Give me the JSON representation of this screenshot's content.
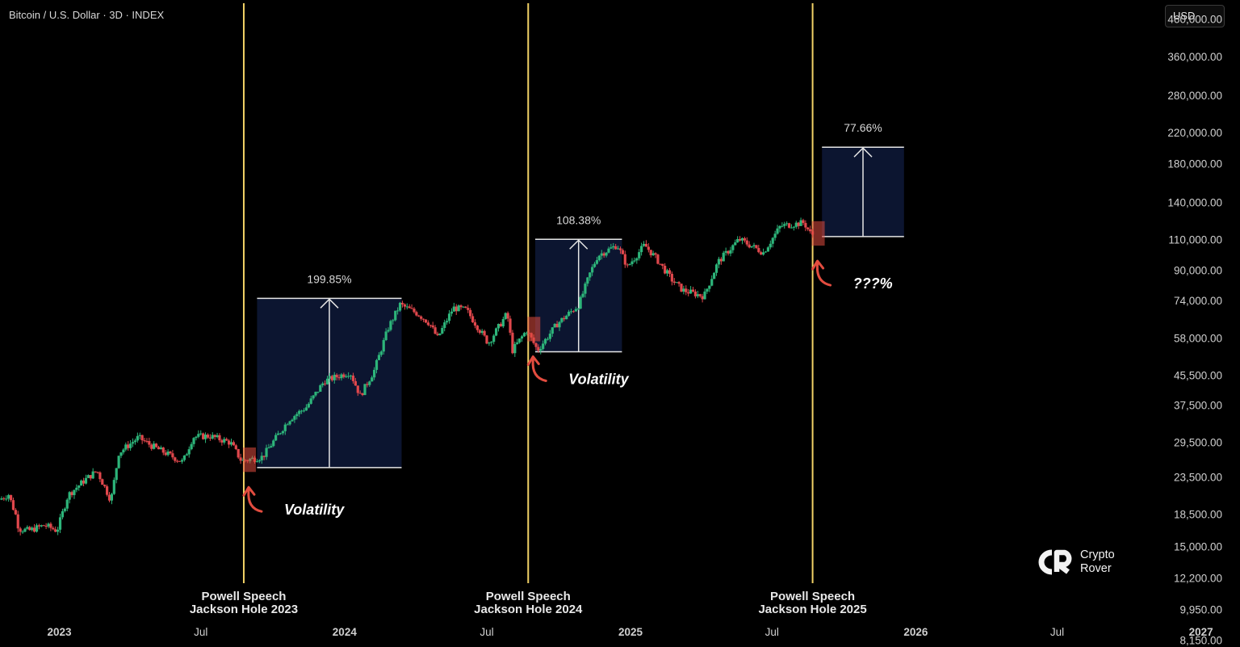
{
  "header": {
    "title": "Bitcoin / U.S. Dollar · 3D · INDEX",
    "currency": "USD"
  },
  "brand": {
    "line1": "Crypto",
    "line2": "Rover"
  },
  "colors": {
    "background": "#000000",
    "up": "#2db57a",
    "down": "#e0474c",
    "event_line": "#f2d266",
    "box_fill": "#0c1530",
    "box_edge": "#e6e6e6",
    "arrow": "#e24c3f"
  },
  "chart_data": {
    "type": "candlestick",
    "title": "Bitcoin / U.S. Dollar · 3D · INDEX",
    "y_scale": "log",
    "ylim": [
      7800,
      520000
    ],
    "xlim": [
      "2022-10-17",
      "2027-02-20"
    ],
    "y_ticks": [
      460000,
      360000,
      280000,
      220000,
      180000,
      140000,
      110000,
      90000,
      74000,
      58000,
      45500,
      37500,
      29500,
      23500,
      18500,
      15000,
      12200,
      9950,
      8150
    ],
    "y_tick_labels": [
      "460,000.00",
      "360,000.00",
      "280,000.00",
      "220,000.00",
      "180,000.00",
      "140,000.00",
      "110,000.00",
      "90,000.00",
      "74,000.00",
      "58,000.00",
      "45,500.00",
      "37,500.00",
      "29,500.00",
      "23,500.00",
      "18,500.00",
      "15,000.00",
      "12,200.00",
      "9,950.00",
      "8,150.00"
    ],
    "x_ticks": [
      {
        "date": "2023-01-01",
        "label": "2023",
        "major": true
      },
      {
        "date": "2023-07-01",
        "label": "Jul",
        "major": false
      },
      {
        "date": "2024-01-01",
        "label": "2024",
        "major": true
      },
      {
        "date": "2024-07-01",
        "label": "Jul",
        "major": false
      },
      {
        "date": "2025-01-01",
        "label": "2025",
        "major": true
      },
      {
        "date": "2025-07-01",
        "label": "Jul",
        "major": false
      },
      {
        "date": "2026-01-01",
        "label": "2026",
        "major": true
      },
      {
        "date": "2026-07-01",
        "label": "Jul",
        "major": false
      },
      {
        "date": "2027-01-01",
        "label": "2027",
        "major": true
      }
    ],
    "price_path": [
      [
        "2022-10-18",
        20300
      ],
      [
        "2022-10-30",
        21000
      ],
      [
        "2022-11-08",
        18400
      ],
      [
        "2022-11-12",
        16800
      ],
      [
        "2022-11-25",
        16600
      ],
      [
        "2022-12-15",
        17200
      ],
      [
        "2022-12-31",
        16600
      ],
      [
        "2023-01-14",
        20900
      ],
      [
        "2023-02-05",
        23100
      ],
      [
        "2023-02-20",
        24500
      ],
      [
        "2023-03-10",
        20200
      ],
      [
        "2023-03-20",
        27500
      ],
      [
        "2023-04-14",
        30400
      ],
      [
        "2023-05-01",
        28800
      ],
      [
        "2023-06-10",
        25900
      ],
      [
        "2023-06-23",
        30500
      ],
      [
        "2023-07-14",
        30700
      ],
      [
        "2023-08-10",
        29400
      ],
      [
        "2023-08-24",
        26100
      ],
      [
        "2023-09-20",
        26800
      ],
      [
        "2023-10-24",
        34200
      ],
      [
        "2023-11-15",
        37000
      ],
      [
        "2023-12-08",
        43800
      ],
      [
        "2024-01-10",
        46500
      ],
      [
        "2024-01-23",
        39800
      ],
      [
        "2024-02-10",
        47000
      ],
      [
        "2024-02-28",
        62000
      ],
      [
        "2024-03-14",
        72000
      ],
      [
        "2024-04-05",
        68000
      ],
      [
        "2024-04-20",
        64000
      ],
      [
        "2024-05-01",
        58000
      ],
      [
        "2024-05-21",
        70500
      ],
      [
        "2024-06-07",
        69500
      ],
      [
        "2024-06-24",
        61000
      ],
      [
        "2024-07-05",
        56000
      ],
      [
        "2024-07-29",
        68000
      ],
      [
        "2024-08-05",
        53500
      ],
      [
        "2024-08-23",
        61000
      ],
      [
        "2024-09-06",
        53500
      ],
      [
        "2024-10-01",
        63500
      ],
      [
        "2024-10-29",
        72000
      ],
      [
        "2024-11-12",
        88000
      ],
      [
        "2024-11-22",
        99000
      ],
      [
        "2024-12-17",
        106000
      ],
      [
        "2024-12-30",
        92000
      ],
      [
        "2025-01-21",
        106000
      ],
      [
        "2025-02-05",
        97000
      ],
      [
        "2025-02-26",
        84000
      ],
      [
        "2025-03-11",
        79000
      ],
      [
        "2025-04-07",
        76000
      ],
      [
        "2025-04-25",
        95000
      ],
      [
        "2025-05-22",
        110000
      ],
      [
        "2025-06-22",
        101000
      ],
      [
        "2025-07-14",
        120000
      ],
      [
        "2025-08-13",
        122500
      ],
      [
        "2025-08-22",
        113500
      ]
    ],
    "events": [
      {
        "date": "2023-08-25",
        "label_line1": "Powell Speech",
        "label_line2": "Jackson Hole 2023",
        "note": "Volatility"
      },
      {
        "date": "2024-08-23",
        "label_line1": "Powell Speech",
        "label_line2": "Jackson Hole 2024",
        "note": "Volatility"
      },
      {
        "date": "2025-08-22",
        "label_line1": "Powell Speech",
        "label_line2": "Jackson Hole 2025",
        "note": "???%"
      }
    ],
    "measurements": [
      {
        "start": "2023-09-11",
        "end": "2024-03-14",
        "low": 25000,
        "high": 75000,
        "label": "199.85%"
      },
      {
        "start": "2024-09-01",
        "end": "2024-12-21",
        "low": 53000,
        "high": 110000,
        "label": "108.38%"
      },
      {
        "start": "2025-09-03",
        "end": "2025-12-17",
        "low": 112000,
        "high": 200000,
        "label": "77.66%"
      }
    ]
  }
}
